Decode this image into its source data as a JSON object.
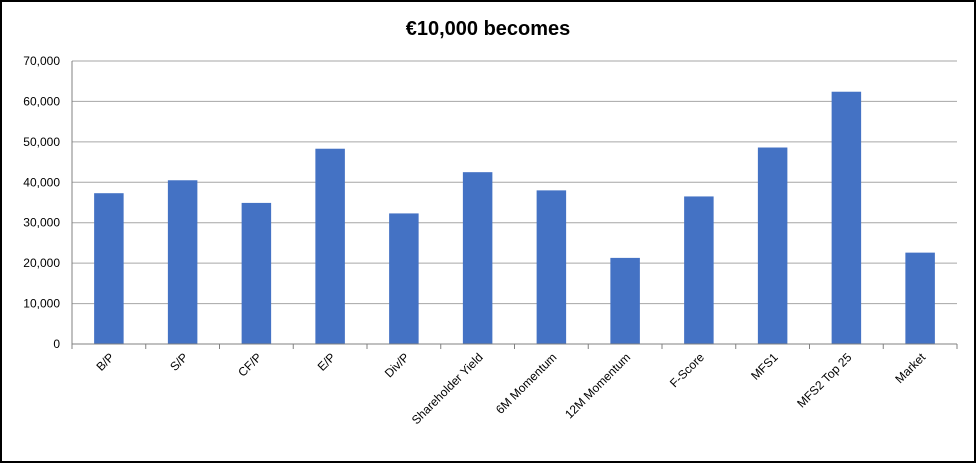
{
  "chart_data": {
    "type": "bar",
    "title": "€10,000 becomes",
    "xlabel": "",
    "ylabel": "",
    "categories": [
      "B/P",
      "S/P",
      "CF/P",
      "E/P",
      "Div/P",
      "Shareholder Yield",
      "6M Momentum",
      "12M Momentum",
      "F-Score",
      "MFS1",
      "MFS2 Top 25",
      "Market"
    ],
    "values": [
      37300,
      40500,
      34900,
      48300,
      32300,
      42500,
      38000,
      21300,
      36500,
      48600,
      62400,
      22600
    ],
    "ylim": [
      0,
      70000
    ],
    "yticks": [
      "0",
      "10,000",
      "20,000",
      "30,000",
      "40,000",
      "50,000",
      "60,000",
      "70,000"
    ],
    "grid": true,
    "bar_color": "#4472C4"
  }
}
